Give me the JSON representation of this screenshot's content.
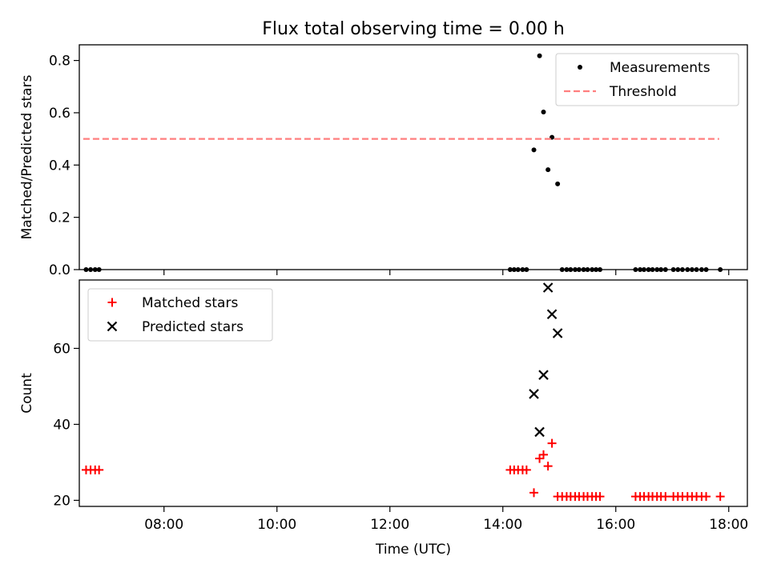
{
  "title": "Flux total observing time = 0.00 h",
  "chart_data": [
    {
      "type": "scatter",
      "ylabel": "Matched/Predicted stars",
      "xlabel": "",
      "xlim": [
        6.5,
        18.33
      ],
      "ylim": [
        0,
        0.86
      ],
      "yticks": [
        0.0,
        0.2,
        0.4,
        0.6,
        0.8
      ],
      "ytick_labels": [
        "0.0",
        "0.2",
        "0.4",
        "0.6",
        "0.8"
      ],
      "legend_position": "top-right",
      "series": [
        {
          "name": "Measurements",
          "marker": "dot",
          "color": "#000000",
          "x": [
            6.62,
            6.7,
            6.78,
            6.85,
            14.13,
            14.2,
            14.27,
            14.35,
            14.42,
            14.55,
            14.65,
            14.72,
            14.8,
            14.87,
            14.97,
            15.05,
            15.13,
            15.2,
            15.28,
            15.35,
            15.43,
            15.5,
            15.58,
            15.65,
            15.72,
            16.35,
            16.43,
            16.5,
            16.58,
            16.65,
            16.73,
            16.8,
            16.88,
            17.02,
            17.1,
            17.18,
            17.27,
            17.35,
            17.43,
            17.52,
            17.6,
            17.85
          ],
          "y": [
            0,
            0,
            0,
            0,
            0,
            0,
            0,
            0,
            0,
            0.458,
            0.818,
            0.603,
            0.382,
            0.506,
            0.328,
            0,
            0,
            0,
            0,
            0,
            0,
            0,
            0,
            0,
            0,
            0,
            0,
            0,
            0,
            0,
            0,
            0,
            0,
            0,
            0,
            0,
            0,
            0,
            0,
            0,
            0,
            0
          ]
        },
        {
          "name": "Threshold",
          "style": "dashed",
          "color": "#ff7f7f",
          "x": [
            6.57,
            17.83
          ],
          "y": [
            0.5,
            0.5
          ]
        }
      ]
    },
    {
      "type": "scatter",
      "ylabel": "Count",
      "xlabel": "Time (UTC)",
      "xlim": [
        6.5,
        18.33
      ],
      "ylim": [
        18.4,
        78
      ],
      "yticks": [
        20,
        40,
        60
      ],
      "ytick_labels": [
        "20",
        "40",
        "60"
      ],
      "xticks": [
        8,
        10,
        12,
        14,
        16,
        18
      ],
      "xtick_labels": [
        "08:00",
        "10:00",
        "12:00",
        "14:00",
        "16:00",
        "18:00"
      ],
      "legend_position": "top-left",
      "series": [
        {
          "name": "Matched stars",
          "marker": "plus",
          "color": "#ff0000",
          "x": [
            6.62,
            6.7,
            6.78,
            6.85,
            14.13,
            14.2,
            14.27,
            14.35,
            14.42,
            14.55,
            14.65,
            14.72,
            14.8,
            14.87,
            14.97,
            15.05,
            15.13,
            15.2,
            15.28,
            15.35,
            15.43,
            15.5,
            15.58,
            15.65,
            15.72,
            16.35,
            16.43,
            16.5,
            16.58,
            16.65,
            16.73,
            16.8,
            16.88,
            17.02,
            17.1,
            17.18,
            17.27,
            17.35,
            17.43,
            17.52,
            17.6,
            17.85
          ],
          "y": [
            28,
            28,
            28,
            28,
            28,
            28,
            28,
            28,
            28,
            22,
            31,
            32,
            29,
            35,
            21,
            21,
            21,
            21,
            21,
            21,
            21,
            21,
            21,
            21,
            21,
            21,
            21,
            21,
            21,
            21,
            21,
            21,
            21,
            21,
            21,
            21,
            21,
            21,
            21,
            21,
            21,
            21
          ]
        },
        {
          "name": "Predicted stars",
          "marker": "x",
          "color": "#000000",
          "x": [
            14.55,
            14.65,
            14.72,
            14.8,
            14.87,
            14.97
          ],
          "y": [
            48,
            38,
            53,
            76,
            69,
            64
          ]
        }
      ]
    }
  ]
}
